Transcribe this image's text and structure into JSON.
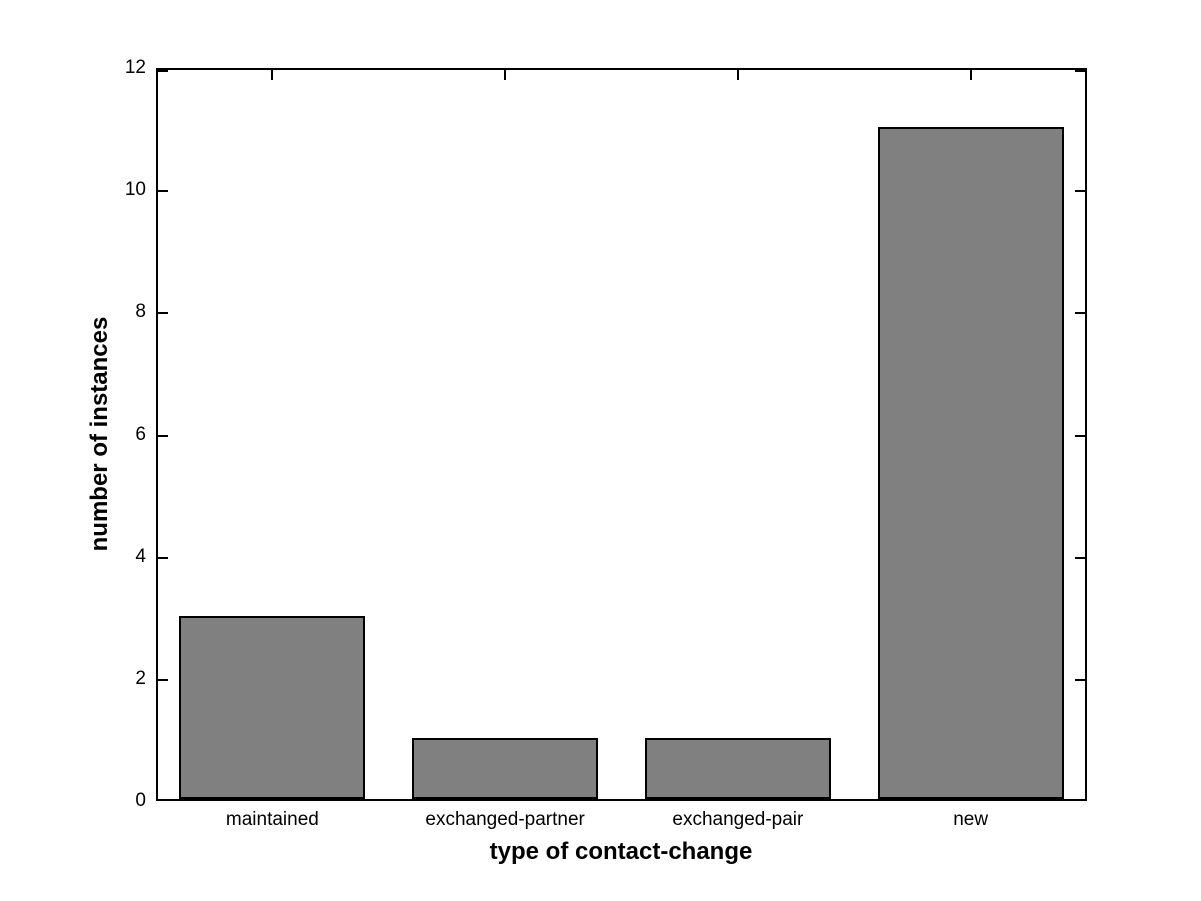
{
  "chart_data": {
    "type": "bar",
    "title": "",
    "categories": [
      "maintained",
      "exchanged-partner",
      "exchanged-pair",
      "new"
    ],
    "values": [
      3,
      1,
      1,
      11
    ],
    "xlabel": "type of contact-change",
    "ylabel": "number of instances",
    "ylim": [
      0,
      12
    ],
    "yticks": [
      0,
      2,
      4,
      6,
      8,
      10,
      12
    ],
    "grid": false,
    "legend": false,
    "bar_width_fraction": 0.8,
    "colors": {
      "bar_fill": "#808080",
      "bar_edge": "#000000",
      "axis": "#000000",
      "text": "#000000",
      "background": "#ffffff"
    }
  }
}
